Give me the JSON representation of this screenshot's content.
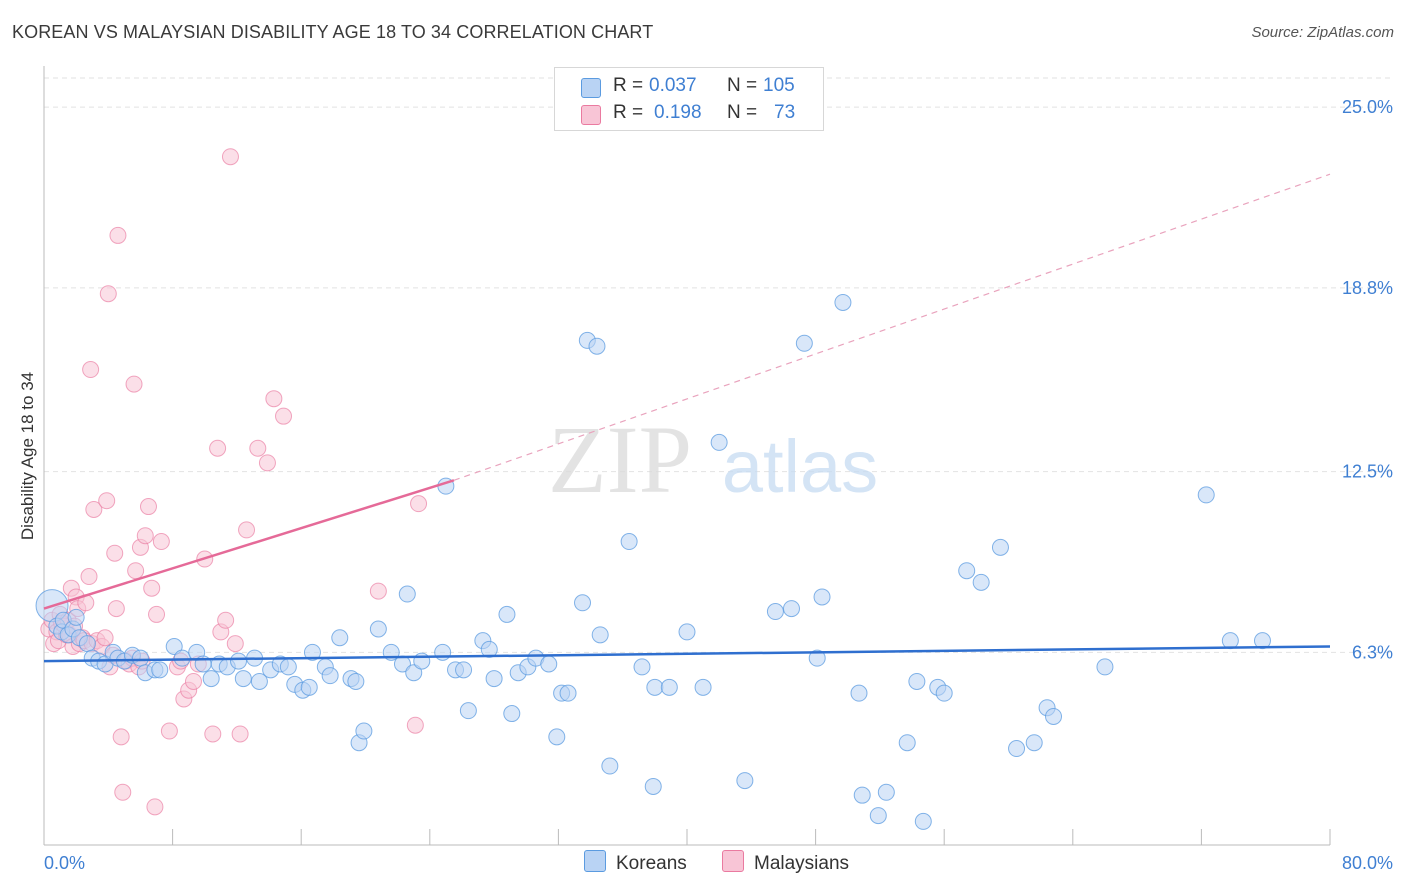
{
  "title": "KOREAN VS MALAYSIAN DISABILITY AGE 18 TO 34 CORRELATION CHART",
  "source": "Source: ZipAtlas.com",
  "watermark": {
    "zip": "ZIP",
    "atlas": "atlas"
  },
  "colors": {
    "korean": "#5b9be0",
    "korean_fill": "#b9d3f4",
    "malaysian": "#ea7aa0",
    "malaysian_fill": "#f8c5d6",
    "accent_text": "#3f7fd2"
  },
  "legend": {
    "korean": {
      "r_label": "R =",
      "r_value": "0.037",
      "n_label": "N =",
      "n_value": "105"
    },
    "malaysian": {
      "r_label": "R =",
      "r_value": "0.198",
      "n_label": "N =",
      "n_value": "73"
    }
  },
  "chart_data": {
    "type": "scatter",
    "title": "KOREAN VS MALAYSIAN DISABILITY AGE 18 TO 34 CORRELATION CHART",
    "xlabel": "",
    "ylabel": "Disability Age 18 to 34",
    "xlim": [
      0,
      80
    ],
    "ylim": [
      0,
      26
    ],
    "x_tick_labels": [
      "0.0%",
      "80.0%"
    ],
    "y_ticks": [
      6.3,
      12.5,
      18.8,
      25.0
    ],
    "y_tick_labels": [
      "6.3%",
      "12.5%",
      "18.8%",
      "25.0%"
    ],
    "grid": "horizontal dashed",
    "legend_position": "top-center and bottom",
    "series": [
      {
        "name": "Koreans",
        "r": 0.037,
        "n": 105,
        "trend": {
          "x": [
            0,
            80
          ],
          "y": [
            6.0,
            6.5
          ],
          "style": "solid"
        },
        "points": [
          [
            0.5,
            7.9
          ],
          [
            0.8,
            7.2
          ],
          [
            1.1,
            7.0
          ],
          [
            1.2,
            7.4
          ],
          [
            1.5,
            6.9
          ],
          [
            1.8,
            7.1
          ],
          [
            2.0,
            7.5
          ],
          [
            2.2,
            6.8
          ],
          [
            2.7,
            6.6
          ],
          [
            3.0,
            6.1
          ],
          [
            3.4,
            6.0
          ],
          [
            3.8,
            5.9
          ],
          [
            4.3,
            6.3
          ],
          [
            4.6,
            6.1
          ],
          [
            5.0,
            6.0
          ],
          [
            5.5,
            6.2
          ],
          [
            6.0,
            6.1
          ],
          [
            6.3,
            5.6
          ],
          [
            6.9,
            5.7
          ],
          [
            7.2,
            5.7
          ],
          [
            8.1,
            6.5
          ],
          [
            8.6,
            6.1
          ],
          [
            9.5,
            6.3
          ],
          [
            9.9,
            5.9
          ],
          [
            10.4,
            5.4
          ],
          [
            10.9,
            5.9
          ],
          [
            11.4,
            5.8
          ],
          [
            12.1,
            6.0
          ],
          [
            12.4,
            5.4
          ],
          [
            13.1,
            6.1
          ],
          [
            13.4,
            5.3
          ],
          [
            14.1,
            5.7
          ],
          [
            14.7,
            5.9
          ],
          [
            15.2,
            5.8
          ],
          [
            15.6,
            5.2
          ],
          [
            16.1,
            5.0
          ],
          [
            16.5,
            5.1
          ],
          [
            16.7,
            6.3
          ],
          [
            17.5,
            5.8
          ],
          [
            17.8,
            5.5
          ],
          [
            18.4,
            6.8
          ],
          [
            19.1,
            5.4
          ],
          [
            19.4,
            5.3
          ],
          [
            19.6,
            3.2
          ],
          [
            19.9,
            3.6
          ],
          [
            20.8,
            7.1
          ],
          [
            21.6,
            6.3
          ],
          [
            22.3,
            5.9
          ],
          [
            22.6,
            8.3
          ],
          [
            23.0,
            5.6
          ],
          [
            23.5,
            6.0
          ],
          [
            24.8,
            6.3
          ],
          [
            25.0,
            12.0
          ],
          [
            25.6,
            5.7
          ],
          [
            26.1,
            5.7
          ],
          [
            26.4,
            4.3
          ],
          [
            27.3,
            6.7
          ],
          [
            27.7,
            6.4
          ],
          [
            28.0,
            5.4
          ],
          [
            28.8,
            7.6
          ],
          [
            29.1,
            4.2
          ],
          [
            29.5,
            5.6
          ],
          [
            30.1,
            5.8
          ],
          [
            30.6,
            6.1
          ],
          [
            31.4,
            5.9
          ],
          [
            31.9,
            3.4
          ],
          [
            32.2,
            4.9
          ],
          [
            32.6,
            4.9
          ],
          [
            33.5,
            8.0
          ],
          [
            33.8,
            17.0
          ],
          [
            34.4,
            16.8
          ],
          [
            34.6,
            6.9
          ],
          [
            35.2,
            2.4
          ],
          [
            36.4,
            10.1
          ],
          [
            37.2,
            5.8
          ],
          [
            37.9,
            1.7
          ],
          [
            38.0,
            5.1
          ],
          [
            38.9,
            5.1
          ],
          [
            40.0,
            7.0
          ],
          [
            41.0,
            5.1
          ],
          [
            42.0,
            13.5
          ],
          [
            43.6,
            1.9
          ],
          [
            45.5,
            7.7
          ],
          [
            46.5,
            7.8
          ],
          [
            47.3,
            16.9
          ],
          [
            48.1,
            6.1
          ],
          [
            48.4,
            8.2
          ],
          [
            49.7,
            18.3
          ],
          [
            50.7,
            4.9
          ],
          [
            50.9,
            1.4
          ],
          [
            51.9,
            0.7
          ],
          [
            52.4,
            1.5
          ],
          [
            53.7,
            3.2
          ],
          [
            54.3,
            5.3
          ],
          [
            54.7,
            0.5
          ],
          [
            55.6,
            5.1
          ],
          [
            56.0,
            4.9
          ],
          [
            57.4,
            9.1
          ],
          [
            58.3,
            8.7
          ],
          [
            59.5,
            9.9
          ],
          [
            60.5,
            3.0
          ],
          [
            61.6,
            3.2
          ],
          [
            62.4,
            4.4
          ],
          [
            62.8,
            4.1
          ],
          [
            66.0,
            5.8
          ],
          [
            72.3,
            11.7
          ],
          [
            73.8,
            6.7
          ],
          [
            75.8,
            6.7
          ]
        ]
      },
      {
        "name": "Malaysians",
        "r": 0.198,
        "n": 73,
        "trend": {
          "x": [
            0,
            25.5,
            80
          ],
          "y": [
            7.8,
            12.2,
            22.7
          ],
          "style": "solid then dashed"
        },
        "points": [
          [
            0.3,
            7.1
          ],
          [
            0.5,
            7.4
          ],
          [
            0.6,
            6.6
          ],
          [
            0.8,
            7.0
          ],
          [
            0.9,
            6.7
          ],
          [
            1.0,
            7.6
          ],
          [
            1.1,
            7.3
          ],
          [
            1.3,
            7.2
          ],
          [
            1.4,
            6.9
          ],
          [
            1.5,
            7.4
          ],
          [
            1.6,
            6.9
          ],
          [
            1.7,
            8.5
          ],
          [
            1.8,
            6.5
          ],
          [
            1.9,
            7.2
          ],
          [
            2.0,
            8.2
          ],
          [
            2.1,
            7.8
          ],
          [
            2.2,
            6.6
          ],
          [
            2.4,
            6.8
          ],
          [
            2.5,
            6.7
          ],
          [
            2.6,
            8.0
          ],
          [
            2.8,
            8.9
          ],
          [
            2.9,
            16.0
          ],
          [
            3.0,
            6.6
          ],
          [
            3.1,
            11.2
          ],
          [
            3.3,
            6.7
          ],
          [
            3.6,
            6.5
          ],
          [
            3.8,
            6.8
          ],
          [
            3.9,
            11.5
          ],
          [
            4.0,
            18.6
          ],
          [
            4.1,
            5.8
          ],
          [
            4.3,
            6.2
          ],
          [
            4.4,
            9.7
          ],
          [
            4.5,
            7.8
          ],
          [
            4.6,
            20.6
          ],
          [
            4.8,
            3.4
          ],
          [
            4.9,
            1.5
          ],
          [
            5.1,
            6.0
          ],
          [
            5.3,
            5.9
          ],
          [
            5.5,
            6.1
          ],
          [
            5.6,
            15.5
          ],
          [
            5.7,
            9.1
          ],
          [
            5.9,
            5.8
          ],
          [
            6.0,
            9.9
          ],
          [
            6.1,
            6.0
          ],
          [
            6.3,
            10.3
          ],
          [
            6.5,
            11.3
          ],
          [
            6.7,
            8.5
          ],
          [
            6.9,
            1.0
          ],
          [
            7.0,
            7.6
          ],
          [
            7.3,
            10.1
          ],
          [
            7.8,
            3.6
          ],
          [
            8.3,
            5.8
          ],
          [
            8.5,
            6.0
          ],
          [
            8.7,
            4.7
          ],
          [
            9.0,
            5.0
          ],
          [
            9.3,
            5.3
          ],
          [
            9.6,
            5.9
          ],
          [
            10.0,
            9.5
          ],
          [
            10.5,
            3.5
          ],
          [
            10.8,
            13.3
          ],
          [
            11.0,
            7.0
          ],
          [
            11.3,
            7.4
          ],
          [
            11.6,
            23.3
          ],
          [
            11.9,
            6.6
          ],
          [
            12.2,
            3.5
          ],
          [
            12.6,
            10.5
          ],
          [
            13.3,
            13.3
          ],
          [
            13.9,
            12.8
          ],
          [
            14.3,
            15.0
          ],
          [
            14.9,
            14.4
          ],
          [
            20.8,
            8.4
          ],
          [
            23.1,
            3.8
          ],
          [
            23.3,
            11.4
          ]
        ]
      }
    ]
  },
  "bottom_legend": {
    "korean": "Koreans",
    "malaysian": "Malaysians"
  }
}
